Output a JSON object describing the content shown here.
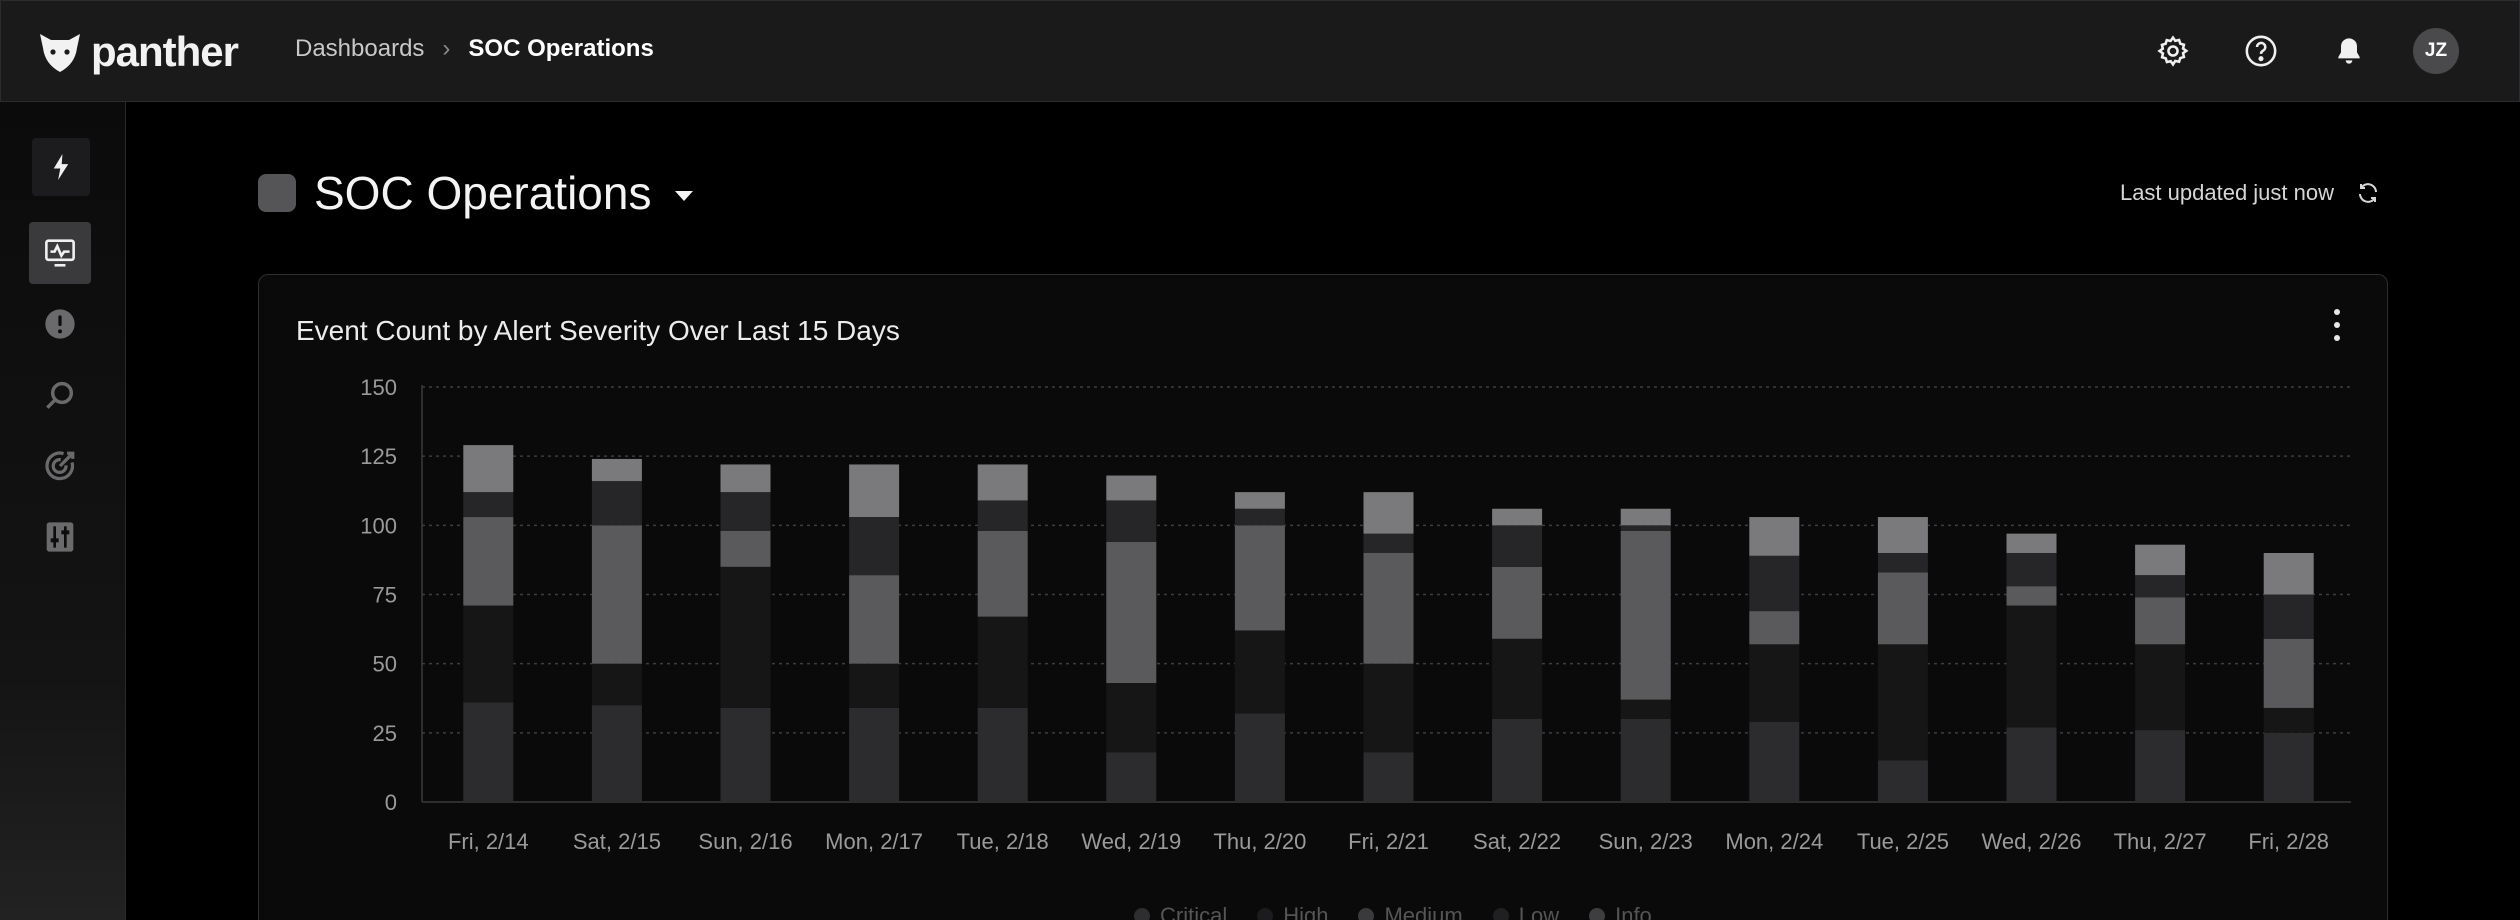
{
  "app": {
    "brand": "panther"
  },
  "breadcrumb": {
    "parent": "Dashboards",
    "separator": "›",
    "current": "SOC Operations"
  },
  "user": {
    "initials": "JZ"
  },
  "top_icons": [
    "gear-icon",
    "help-icon",
    "bell-icon"
  ],
  "sidebar": {
    "items": [
      "bolt-icon",
      "dashboard-icon",
      "alert-icon",
      "search-icon",
      "detections-icon",
      "settings-sliders-icon"
    ],
    "active": "dashboard-icon"
  },
  "page": {
    "title": "SOC Operations",
    "last_updated": "Last updated just now"
  },
  "card": {
    "title": "Event Count by Alert Severity Over Last 15 Days"
  },
  "colors": {
    "critical": "#2c2c2e",
    "high": "#161617",
    "medium": "#5a5a5c",
    "low": "#262628",
    "info": "#7a7a7c"
  },
  "chart_data": {
    "type": "bar",
    "stacked": true,
    "ylim": [
      0,
      150
    ],
    "yticks": [
      "0",
      "25",
      "50",
      "75",
      "100",
      "125",
      "150"
    ],
    "categories": [
      "Fri, 2/14",
      "Sat, 2/15",
      "Sun, 2/16",
      "Mon, 2/17",
      "Tue, 2/18",
      "Wed, 2/19",
      "Thu, 2/20",
      "Fri, 2/21",
      "Sat, 2/22",
      "Sun, 2/23",
      "Mon, 2/24",
      "Tue, 2/25",
      "Wed, 2/26",
      "Thu, 2/27",
      "Fri, 2/28"
    ],
    "series": [
      {
        "name": "Critical",
        "values": [
          36,
          35,
          34,
          34,
          34,
          18,
          32,
          18,
          30,
          30,
          29,
          15,
          27,
          26,
          25
        ]
      },
      {
        "name": "High",
        "values": [
          35,
          15,
          51,
          16,
          33,
          25,
          30,
          32,
          29,
          7,
          28,
          42,
          44,
          31,
          9
        ]
      },
      {
        "name": "Medium",
        "values": [
          32,
          50,
          13,
          32,
          31,
          51,
          38,
          40,
          26,
          61,
          12,
          26,
          7,
          17,
          25
        ]
      },
      {
        "name": "Low",
        "values": [
          9,
          16,
          14,
          21,
          11,
          15,
          6,
          7,
          15,
          2,
          20,
          7,
          12,
          8,
          16
        ]
      },
      {
        "name": "Info",
        "values": [
          17,
          8,
          10,
          19,
          13,
          9,
          6,
          15,
          6,
          6,
          14,
          13,
          7,
          11,
          15
        ]
      }
    ],
    "grid": true,
    "legend_position": "bottom"
  }
}
